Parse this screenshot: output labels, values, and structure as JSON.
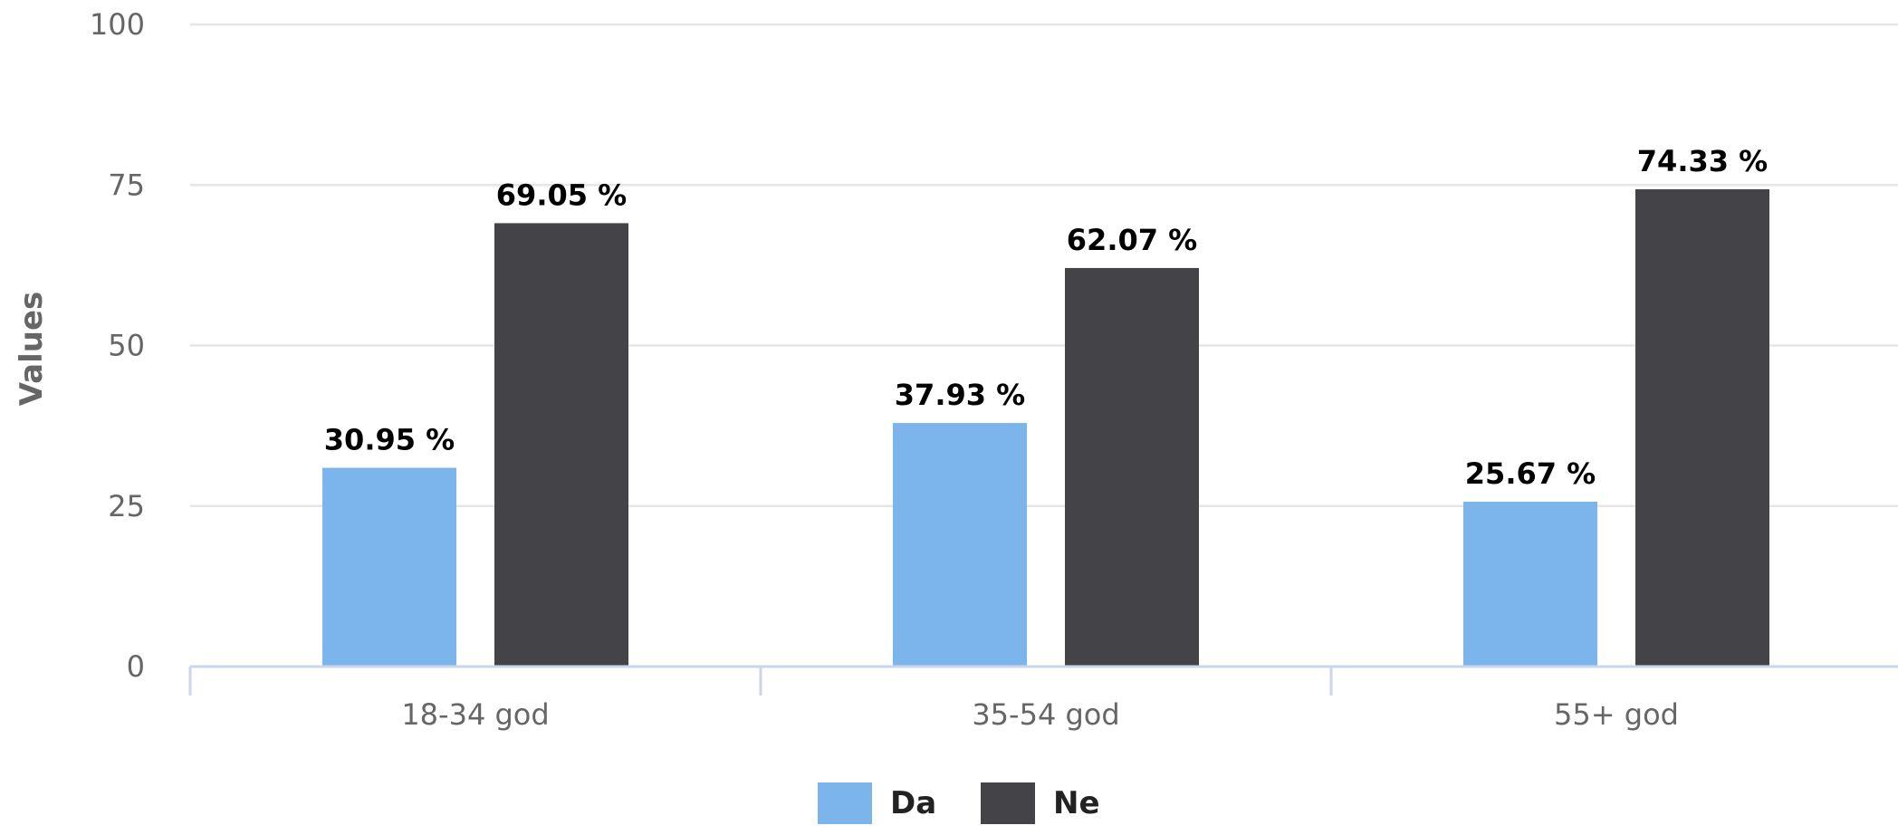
{
  "chart_data": {
    "type": "bar",
    "categories": [
      "18-34 god",
      "35-54 god",
      "55+ god"
    ],
    "series": [
      {
        "name": "Da",
        "values": [
          30.95,
          37.93,
          25.67
        ],
        "color": "#7cb5ec",
        "labels": [
          "30.95 %",
          "37.93 %",
          "25.67 %"
        ]
      },
      {
        "name": "Ne",
        "values": [
          69.05,
          62.07,
          74.33
        ],
        "color": "#434348",
        "labels": [
          "69.05 %",
          "62.07 %",
          "74.33 %"
        ]
      }
    ],
    "ylabel": "Values",
    "xlabel": "",
    "ylim": [
      0,
      100
    ],
    "yticks": [
      0,
      25,
      50,
      75,
      100
    ],
    "grid": true,
    "legend": "bottom-center",
    "colors": {
      "grid": "#e6e6e6",
      "axis": "#ccd6eb",
      "tick_text": "#666666"
    }
  }
}
